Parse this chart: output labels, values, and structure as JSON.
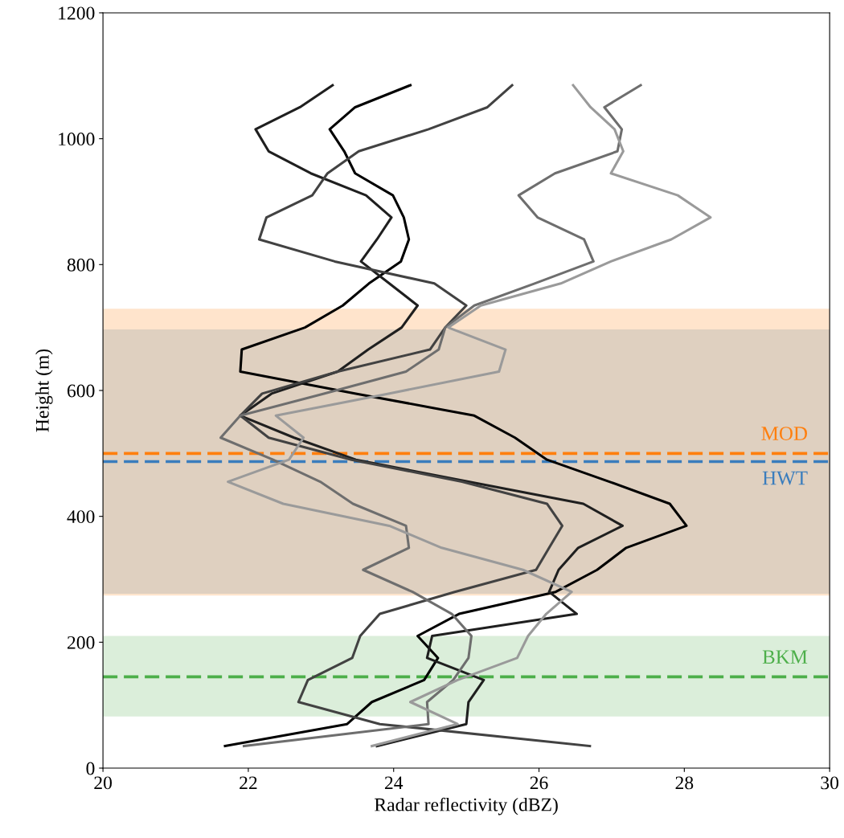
{
  "chart_data": {
    "type": "line",
    "xlabel": "Radar reflectivity (dBZ)",
    "ylabel": "Height (m)",
    "xlim": [
      20,
      30
    ],
    "xticks": [
      20,
      22,
      24,
      26,
      28,
      30
    ],
    "ylim": [
      0,
      1200
    ],
    "yticks": [
      0,
      200,
      400,
      600,
      800,
      1000,
      1200
    ],
    "grid": false,
    "marker": "none",
    "line_style": "solid",
    "bands": [
      {
        "axis": "y",
        "from": 274,
        "to": 730,
        "color": "#ffe4cc"
      },
      {
        "axis": "y",
        "from": 277,
        "to": 697,
        "color": "#dfd0c0"
      },
      {
        "axis": "y",
        "from": 82,
        "to": 210,
        "color": "#dbeeda"
      }
    ],
    "ref_lines": [
      {
        "axis": "y",
        "value": 500,
        "label": "MOD",
        "color": "#ff7f0e",
        "line_style": "dashed"
      },
      {
        "axis": "y",
        "value": 487,
        "label": "HWT",
        "color": "#3a7dbd",
        "line_style": "dashed"
      },
      {
        "axis": "y",
        "value": 145,
        "label": "BKM",
        "color": "#4daf4a",
        "line_style": "dashed"
      }
    ],
    "series": [
      {
        "color": "#000000",
        "x": [
          21.68,
          23.36,
          23.7,
          24.42,
          24.61,
          24.33,
          24.9,
          26.23,
          26.8,
          27.2,
          28.03,
          27.8,
          26.97,
          26.11,
          25.67,
          25.11,
          23.48,
          21.89,
          21.91,
          22.78,
          23.3,
          23.66,
          24.1,
          24.21,
          24.14,
          23.99,
          23.47,
          23.32,
          23.12,
          23.47,
          24.23
        ],
        "values": [
          35,
          70,
          105,
          140,
          175,
          210,
          245,
          280,
          315,
          350,
          385,
          420,
          455,
          490,
          525,
          560,
          595,
          630,
          665,
          700,
          735,
          770,
          805,
          840,
          875,
          910,
          945,
          980,
          1015,
          1050,
          1085
        ]
      },
      {
        "color": "#1f1f1f",
        "x": [
          23.77,
          25.0,
          25.03,
          25.24,
          24.46,
          24.53,
          26.52,
          26.14,
          26.27,
          26.54,
          27.15,
          26.61,
          25.03,
          23.48,
          22.63,
          21.89,
          22.32,
          23.23,
          23.65,
          24.11,
          24.33,
          23.94,
          23.55,
          23.77,
          23.97,
          23.62,
          22.86,
          22.28,
          22.1,
          22.71,
          23.16
        ],
        "values": [
          35,
          70,
          105,
          140,
          175,
          210,
          245,
          280,
          315,
          350,
          385,
          420,
          455,
          490,
          525,
          560,
          595,
          630,
          665,
          700,
          735,
          770,
          805,
          840,
          875,
          910,
          945,
          980,
          1015,
          1050,
          1085
        ]
      },
      {
        "color": "#424242",
        "x": [
          26.7,
          23.81,
          22.69,
          22.82,
          23.43,
          23.54,
          23.81,
          24.84,
          25.96,
          26.14,
          26.32,
          26.11,
          24.94,
          23.42,
          22.28,
          21.89,
          22.19,
          23.23,
          24.5,
          24.71,
          25.0,
          24.56,
          23.19,
          22.15,
          22.25,
          22.88,
          23.09,
          23.52,
          24.48,
          25.29,
          25.63
        ],
        "values": [
          35,
          70,
          105,
          140,
          175,
          210,
          245,
          280,
          315,
          350,
          385,
          420,
          455,
          490,
          525,
          560,
          595,
          630,
          665,
          700,
          735,
          770,
          805,
          840,
          875,
          910,
          945,
          980,
          1015,
          1050,
          1085
        ]
      },
      {
        "color": "#6e6e6e",
        "x": [
          21.94,
          24.48,
          24.46,
          24.82,
          25.03,
          25.07,
          24.8,
          24.26,
          23.58,
          24.21,
          24.17,
          23.44,
          22.99,
          22.34,
          21.62,
          21.89,
          23.04,
          24.17,
          24.62,
          24.71,
          25.11,
          25.94,
          26.75,
          26.62,
          25.98,
          25.72,
          26.22,
          27.08,
          27.14,
          26.9,
          27.4
        ],
        "values": [
          35,
          70,
          105,
          140,
          175,
          210,
          245,
          280,
          315,
          350,
          385,
          420,
          455,
          490,
          525,
          560,
          595,
          630,
          665,
          700,
          735,
          770,
          805,
          840,
          875,
          910,
          945,
          980,
          1015,
          1050,
          1085
        ]
      },
      {
        "color": "#9a9a9a",
        "x": [
          23.7,
          24.88,
          24.23,
          24.88,
          25.7,
          25.85,
          26.1,
          26.45,
          25.78,
          24.66,
          23.94,
          22.48,
          21.72,
          22.56,
          22.76,
          22.38,
          23.93,
          25.45,
          25.54,
          24.75,
          25.2,
          26.3,
          26.99,
          27.82,
          28.36,
          27.91,
          26.99,
          27.16,
          27.04,
          26.71,
          26.47
        ],
        "values": [
          35,
          70,
          105,
          140,
          175,
          210,
          245,
          280,
          315,
          350,
          385,
          420,
          455,
          490,
          525,
          560,
          595,
          630,
          665,
          700,
          735,
          770,
          805,
          840,
          875,
          910,
          945,
          980,
          1015,
          1050,
          1085
        ]
      }
    ]
  }
}
